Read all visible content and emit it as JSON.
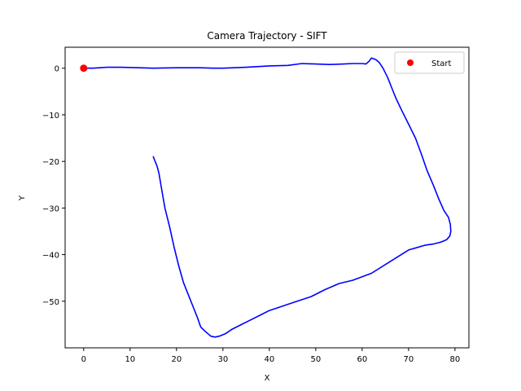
{
  "chart_data": {
    "type": "line",
    "title": "Camera Trajectory - SIFT",
    "xlabel": "X",
    "ylabel": "Y",
    "xlim": [
      -4,
      83
    ],
    "ylim": [
      -60,
      4.5
    ],
    "xticks": [
      0,
      10,
      20,
      30,
      40,
      50,
      60,
      70,
      80
    ],
    "yticks": [
      0,
      -10,
      -20,
      -30,
      -40,
      -50
    ],
    "ytick_labels": [
      "0",
      "−10",
      "−20",
      "−30",
      "−40",
      "−50"
    ],
    "grid": false,
    "legend": {
      "placement": "top-right",
      "entries": [
        {
          "label": "Start",
          "color": "#ff0000",
          "marker": "circle"
        }
      ]
    },
    "series": [
      {
        "color": "#0000ff",
        "x": [
          0,
          2,
          5,
          8,
          12,
          15,
          20,
          25,
          28,
          30,
          35,
          40,
          44,
          47,
          50,
          53,
          56,
          58,
          60,
          60.8,
          61.5,
          62,
          62.5,
          63,
          63.7,
          64.5,
          65.5,
          66.5,
          67.3,
          68.5,
          70,
          71.5,
          72.8,
          74,
          75.3,
          76.5,
          77.6,
          78.6,
          79,
          79.1,
          78.9,
          78.2,
          77,
          75.5,
          73.5,
          70,
          66,
          62,
          58,
          55,
          52,
          49,
          46,
          43,
          40,
          38,
          36,
          34,
          32,
          30.5,
          29.2,
          28.3,
          27.4,
          26.8,
          26,
          25.2,
          24.5,
          23.5,
          22.5,
          21.5,
          20.5,
          19.5,
          18.5,
          17.5,
          16.8,
          16.2,
          15.8,
          15.4,
          15
        ],
        "y": [
          0,
          0,
          0.2,
          0.2,
          0.1,
          0,
          0.1,
          0.1,
          0,
          0,
          0.2,
          0.5,
          0.6,
          1,
          0.9,
          0.8,
          0.9,
          1,
          1,
          0.9,
          1.5,
          2.2,
          2,
          1.8,
          1.2,
          0,
          -2,
          -4.5,
          -6.5,
          -9,
          -12,
          -15,
          -18.5,
          -22,
          -25,
          -28,
          -30.5,
          -32,
          -33.5,
          -35,
          -36,
          -36.8,
          -37.3,
          -37.7,
          -38,
          -39,
          -41.5,
          -44,
          -45.5,
          -46.2,
          -47.5,
          -49,
          -50,
          -51,
          -52,
          -53,
          -54,
          -55,
          -56,
          -57,
          -57.5,
          -57.7,
          -57.5,
          -57,
          -56.3,
          -55.5,
          -53.5,
          -51,
          -48.5,
          -46,
          -42.5,
          -38.5,
          -34,
          -30,
          -26,
          -22.5,
          -21,
          -20,
          -19
        ]
      },
      {
        "name": "Start",
        "type": "scatter",
        "color": "#ff0000",
        "x": [
          0
        ],
        "y": [
          0
        ]
      }
    ]
  }
}
